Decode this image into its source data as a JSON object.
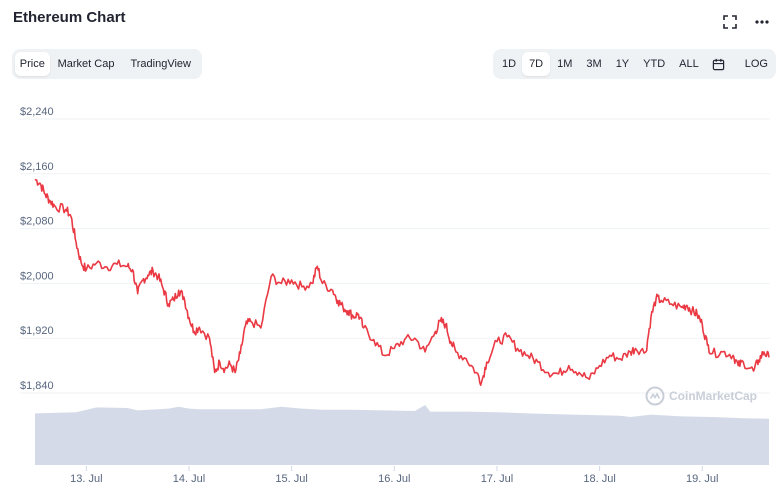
{
  "header": {
    "title": "Ethereum Chart",
    "fullscreen_icon": "fullscreen-icon",
    "more_icon": "more-horizontal-icon"
  },
  "view_tabs": [
    {
      "label": "Price",
      "active": true
    },
    {
      "label": "Market Cap",
      "active": false
    },
    {
      "label": "TradingView",
      "active": false
    }
  ],
  "range_tabs": [
    {
      "label": "1D",
      "active": false
    },
    {
      "label": "7D",
      "active": true
    },
    {
      "label": "1M",
      "active": false
    },
    {
      "label": "3M",
      "active": false
    },
    {
      "label": "1Y",
      "active": false
    },
    {
      "label": "YTD",
      "active": false
    },
    {
      "label": "ALL",
      "active": false
    }
  ],
  "calendar_icon": "calendar-icon",
  "log_label": "LOG",
  "watermark": "CoinMarketCap",
  "colors": {
    "line": "#ea3943",
    "volume": "#cfd6e4",
    "grid": "#eff2f5",
    "text": "#58667e"
  },
  "chart_data": {
    "type": "line",
    "title": "",
    "xlabel": "",
    "ylabel": "",
    "ylim": [
      1800,
      2300
    ],
    "x_ticks": [
      {
        "label": "13. Jul",
        "t": 0.5
      },
      {
        "label": "14. Jul",
        "t": 1.5
      },
      {
        "label": "15. Jul",
        "t": 2.5
      },
      {
        "label": "16. Jul",
        "t": 3.5
      },
      {
        "label": "17. Jul",
        "t": 4.5
      },
      {
        "label": "18. Jul",
        "t": 5.5
      },
      {
        "label": "19. Jul",
        "t": 6.5
      }
    ],
    "y_ticks": [
      {
        "label": "$2,240",
        "value": 2240
      },
      {
        "label": "$2,160",
        "value": 2160
      },
      {
        "label": "$2,080",
        "value": 2080
      },
      {
        "label": "$2,000",
        "value": 2000
      },
      {
        "label": "$1,920",
        "value": 1920
      },
      {
        "label": "$1,840",
        "value": 1840
      }
    ],
    "grid": true,
    "series": [
      {
        "type": "line",
        "values": [
          [
            0.0,
            2152
          ],
          [
            0.05,
            2146
          ],
          [
            0.1,
            2130
          ],
          [
            0.15,
            2120
          ],
          [
            0.2,
            2112
          ],
          [
            0.3,
            2108
          ],
          [
            0.35,
            2098
          ],
          [
            0.4,
            2060
          ],
          [
            0.45,
            2030
          ],
          [
            0.5,
            2020
          ],
          [
            0.6,
            2030
          ],
          [
            0.7,
            2024
          ],
          [
            0.8,
            2028
          ],
          [
            0.9,
            2025
          ],
          [
            0.95,
            2020
          ],
          [
            1.0,
            1985
          ],
          [
            1.05,
            2005
          ],
          [
            1.1,
            2012
          ],
          [
            1.15,
            2018
          ],
          [
            1.2,
            2010
          ],
          [
            1.25,
            1992
          ],
          [
            1.3,
            1970
          ],
          [
            1.35,
            1976
          ],
          [
            1.4,
            1990
          ],
          [
            1.45,
            1980
          ],
          [
            1.5,
            1950
          ],
          [
            1.55,
            1930
          ],
          [
            1.6,
            1936
          ],
          [
            1.7,
            1920
          ],
          [
            1.75,
            1870
          ],
          [
            1.8,
            1885
          ],
          [
            1.85,
            1875
          ],
          [
            1.9,
            1882
          ],
          [
            1.95,
            1870
          ],
          [
            2.0,
            1898
          ],
          [
            2.05,
            1938
          ],
          [
            2.1,
            1945
          ],
          [
            2.2,
            1935
          ],
          [
            2.3,
            2010
          ],
          [
            2.4,
            2000
          ],
          [
            2.5,
            2005
          ],
          [
            2.6,
            1995
          ],
          [
            2.7,
            2000
          ],
          [
            2.75,
            2025
          ],
          [
            2.8,
            2000
          ],
          [
            2.9,
            1990
          ],
          [
            2.95,
            1975
          ],
          [
            3.0,
            1965
          ],
          [
            3.05,
            1960
          ],
          [
            3.1,
            1952
          ],
          [
            3.15,
            1955
          ],
          [
            3.2,
            1935
          ],
          [
            3.3,
            1918
          ],
          [
            3.4,
            1895
          ],
          [
            3.5,
            1905
          ],
          [
            3.6,
            1918
          ],
          [
            3.7,
            1920
          ],
          [
            3.8,
            1900
          ],
          [
            3.9,
            1930
          ],
          [
            3.95,
            1945
          ],
          [
            4.0,
            1940
          ],
          [
            4.05,
            1915
          ],
          [
            4.1,
            1900
          ],
          [
            4.2,
            1890
          ],
          [
            4.3,
            1870
          ],
          [
            4.35,
            1856
          ],
          [
            4.4,
            1885
          ],
          [
            4.5,
            1915
          ],
          [
            4.6,
            1922
          ],
          [
            4.7,
            1905
          ],
          [
            4.8,
            1895
          ],
          [
            4.9,
            1885
          ],
          [
            5.0,
            1870
          ],
          [
            5.1,
            1868
          ],
          [
            5.2,
            1880
          ],
          [
            5.3,
            1870
          ],
          [
            5.4,
            1860
          ],
          [
            5.5,
            1880
          ],
          [
            5.6,
            1895
          ],
          [
            5.7,
            1890
          ],
          [
            5.8,
            1900
          ],
          [
            5.85,
            1905
          ],
          [
            5.95,
            1900
          ],
          [
            6.0,
            1950
          ],
          [
            6.05,
            1978
          ],
          [
            6.1,
            1975
          ],
          [
            6.2,
            1970
          ],
          [
            6.3,
            1965
          ],
          [
            6.35,
            1968
          ],
          [
            6.4,
            1960
          ],
          [
            6.45,
            1955
          ],
          [
            6.5,
            1940
          ],
          [
            6.55,
            1910
          ],
          [
            6.6,
            1898
          ],
          [
            6.7,
            1900
          ],
          [
            6.8,
            1895
          ],
          [
            6.85,
            1880
          ],
          [
            6.9,
            1885
          ],
          [
            7.0,
            1872
          ],
          [
            7.05,
            1888
          ],
          [
            7.1,
            1900
          ],
          [
            7.15,
            1892
          ]
        ]
      },
      {
        "type": "area",
        "values": [
          [
            0.0,
            0.86
          ],
          [
            0.4,
            0.88
          ],
          [
            0.6,
            0.96
          ],
          [
            0.9,
            0.95
          ],
          [
            1.0,
            0.91
          ],
          [
            1.3,
            0.94
          ],
          [
            1.4,
            0.97
          ],
          [
            1.5,
            0.94
          ],
          [
            1.6,
            0.93
          ],
          [
            1.9,
            0.93
          ],
          [
            2.2,
            0.93
          ],
          [
            2.4,
            0.97
          ],
          [
            2.6,
            0.94
          ],
          [
            2.8,
            0.92
          ],
          [
            3.1,
            0.92
          ],
          [
            3.4,
            0.91
          ],
          [
            3.7,
            0.9
          ],
          [
            3.8,
            1.0
          ],
          [
            3.85,
            0.89
          ],
          [
            4.2,
            0.89
          ],
          [
            4.5,
            0.88
          ],
          [
            4.8,
            0.86
          ],
          [
            5.0,
            0.85
          ],
          [
            5.5,
            0.83
          ],
          [
            5.7,
            0.82
          ],
          [
            5.8,
            0.8
          ],
          [
            6.0,
            0.84
          ],
          [
            6.3,
            0.81
          ],
          [
            6.6,
            0.8
          ],
          [
            6.9,
            0.78
          ],
          [
            7.15,
            0.77
          ]
        ]
      }
    ]
  }
}
